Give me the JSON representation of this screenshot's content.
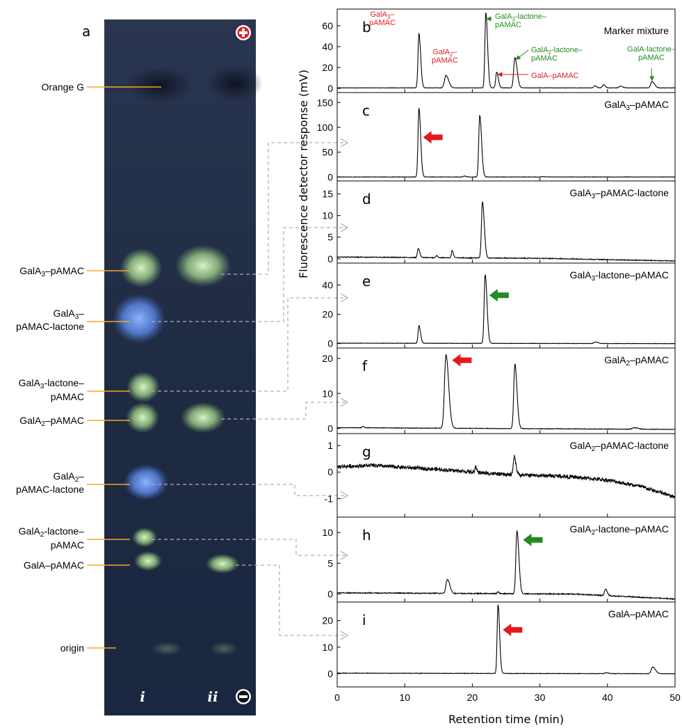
{
  "figure_letter": "a",
  "tlc": {
    "lane_labels": [
      "i",
      "ii"
    ],
    "band_labels": [
      {
        "text": "Orange G"
      },
      {
        "base": "GalA",
        "sub": "3",
        "rest": "–pAMAC"
      },
      {
        "base": "GalA",
        "sub": "3",
        "rest": "–",
        "line2": "pAMAC-lactone"
      },
      {
        "base": "GalA",
        "sub": "3",
        "rest": "-lactone–",
        "line2": "pAMAC"
      },
      {
        "base": "GalA",
        "sub": "2",
        "rest": "–pAMAC"
      },
      {
        "base": "GalA",
        "sub": "2",
        "rest": "–",
        "line2": "pAMAC-lactone"
      },
      {
        "base": "GalA",
        "sub": "2",
        "rest": "-lactone–",
        "line2": "pAMAC"
      },
      {
        "text": "GalA–pAMAC"
      },
      {
        "text": "origin"
      }
    ],
    "colors": {
      "plate": "#1e2a3f",
      "green_spot": "#c9f2a8",
      "blue_spot": "#6f9cff",
      "leader": "#f5a623",
      "dashed": "#b0b0b0"
    }
  },
  "chart_data": {
    "type": "line",
    "xlabel": "Retention time (min)",
    "ylabel": "Fluorescence detector response (mV)",
    "xlim": [
      0,
      50
    ],
    "xticks": [
      0,
      10,
      20,
      30,
      40,
      50
    ],
    "panels": [
      {
        "letter": "b",
        "title": "Marker mixture",
        "ylim": [
          -4,
          76
        ],
        "yticks": [
          0,
          20,
          40,
          60
        ],
        "baseline": [
          [
            0,
            0.5
          ],
          [
            50,
            0.5
          ]
        ],
        "peaks": [
          [
            12.1,
            52,
            0.14
          ],
          [
            16.1,
            12,
            0.22
          ],
          [
            22.0,
            72,
            0.14
          ],
          [
            23.6,
            15,
            0.14
          ],
          [
            26.3,
            29,
            0.18
          ],
          [
            38.1,
            2,
            0.15
          ],
          [
            39.4,
            3,
            0.15
          ],
          [
            41.9,
            1.5,
            0.2
          ],
          [
            46.6,
            6,
            0.2
          ]
        ],
        "annotations": [
          {
            "color": "red",
            "lines": [
              {
                "base": "GalA",
                "sub": "3",
                "rest": "–"
              },
              {
                "text": "pAMAC"
              }
            ]
          },
          {
            "color": "red",
            "lines": [
              {
                "base": "GalA",
                "sub": "2",
                "rest": "–"
              },
              {
                "text": "pAMAC"
              }
            ]
          },
          {
            "color": "green",
            "lines": [
              {
                "base": "GalA",
                "sub": "3",
                "rest": "-lactone–"
              },
              {
                "text": "pAMAC"
              }
            ]
          },
          {
            "color": "green",
            "lines": [
              {
                "base": "GalA",
                "sub": "2",
                "rest": "-lactone–"
              },
              {
                "text": "pAMAC"
              }
            ]
          },
          {
            "color": "red",
            "lines": [
              {
                "text": "GalA–pAMAC"
              }
            ]
          },
          {
            "color": "green",
            "lines": [
              {
                "text": "GalA-lactone–"
              },
              {
                "text": "pAMAC"
              }
            ]
          }
        ]
      },
      {
        "letter": "c",
        "title": {
          "base": "GalA",
          "sub": "3",
          "rest": "–pAMAC"
        },
        "ylim": [
          -8,
          170
        ],
        "yticks": [
          0,
          50,
          100,
          150
        ],
        "baseline": [
          [
            0,
            0
          ],
          [
            50,
            0
          ]
        ],
        "peaks": [
          [
            12.1,
            138,
            0.14
          ],
          [
            21.1,
            124,
            0.15
          ],
          [
            18.8,
            2,
            0.15
          ],
          [
            30.5,
            1,
            0.2
          ]
        ],
        "arrow": {
          "x": 12.1,
          "y": 80,
          "color": "red"
        }
      },
      {
        "letter": "d",
        "title": {
          "base": "GalA",
          "sub": "3",
          "rest": "–pAMAC-lactone"
        },
        "ylim": [
          -1,
          18
        ],
        "yticks": [
          0,
          5,
          10,
          15
        ],
        "baseline": [
          [
            0,
            0.4
          ],
          [
            30,
            0.1
          ],
          [
            50,
            -0.5
          ]
        ],
        "noise": 0.08,
        "peaks": [
          [
            12.0,
            2.1,
            0.12
          ],
          [
            14.7,
            0.5,
            0.1
          ],
          [
            17.0,
            1.7,
            0.1
          ],
          [
            21.5,
            13.0,
            0.15
          ]
        ]
      },
      {
        "letter": "e",
        "title": {
          "base": "GalA",
          "sub": "3",
          "rest": "-lactone–pAMAC"
        },
        "ylim": [
          -3,
          55
        ],
        "yticks": [
          0,
          20,
          40
        ],
        "baseline": [
          [
            0,
            0.3
          ],
          [
            50,
            0
          ]
        ],
        "peaks": [
          [
            12.1,
            12,
            0.13
          ],
          [
            21.9,
            47,
            0.15
          ],
          [
            38.2,
            1,
            0.2
          ]
        ],
        "arrow": {
          "x": 21.9,
          "y": 33,
          "color": "green"
        }
      },
      {
        "letter": "f",
        "title": {
          "base": "GalA",
          "sub": "2",
          "rest": "–pAMAC"
        },
        "ylim": [
          -1.5,
          23
        ],
        "yticks": [
          0,
          10,
          20
        ],
        "baseline": [
          [
            0,
            0.2
          ],
          [
            50,
            -0.3
          ]
        ],
        "noise": 0.05,
        "peaks": [
          [
            16.1,
            21,
            0.22
          ],
          [
            26.3,
            18.5,
            0.17
          ],
          [
            3.8,
            0.5,
            0.1
          ],
          [
            44.0,
            0.4,
            0.3
          ]
        ],
        "arrow": {
          "x": 16.4,
          "y": 19.5,
          "color": "red"
        }
      },
      {
        "letter": "g",
        "title": {
          "base": "GalA",
          "sub": "2",
          "rest": "–pAMAC-lactone"
        },
        "ylim": [
          -1.7,
          1.45
        ],
        "yticks": [
          1,
          0,
          -1
        ],
        "baseline": [
          [
            0,
            0.2
          ],
          [
            5,
            0.25
          ],
          [
            15,
            0.1
          ],
          [
            25,
            -0.1
          ],
          [
            33,
            -0.15
          ],
          [
            40,
            -0.3
          ],
          [
            45,
            -0.55
          ],
          [
            50,
            -0.95
          ]
        ],
        "noise": 0.07,
        "peaks": [
          [
            26.2,
            0.7,
            0.14
          ],
          [
            20.5,
            0.2,
            0.1
          ]
        ]
      },
      {
        "letter": "h",
        "title": {
          "base": "GalA",
          "sub": "2",
          "rest": "-lactone–pAMAC"
        },
        "ylim": [
          -1.3,
          12.5
        ],
        "yticks": [
          0,
          5,
          10
        ],
        "baseline": [
          [
            0,
            0.2
          ],
          [
            35,
            0
          ],
          [
            50,
            -0.8
          ]
        ],
        "noise": 0.07,
        "peaks": [
          [
            16.3,
            2.3,
            0.2
          ],
          [
            26.6,
            10.2,
            0.16
          ],
          [
            39.7,
            1.1,
            0.14
          ],
          [
            23.8,
            0.3,
            0.1
          ]
        ],
        "arrow": {
          "x": 26.9,
          "y": 8.8,
          "color": "green"
        }
      },
      {
        "letter": "i",
        "title": {
          "text": "GalA–pAMAC"
        },
        "ylim": [
          -5,
          27
        ],
        "yticks": [
          0,
          10,
          20
        ],
        "baseline": [
          [
            0,
            0.2
          ],
          [
            50,
            0
          ]
        ],
        "noise": 0.05,
        "peaks": [
          [
            23.8,
            26,
            0.13
          ],
          [
            46.7,
            2.5,
            0.22
          ],
          [
            39.8,
            0.3,
            0.2
          ]
        ],
        "arrow": {
          "x": 23.9,
          "y": 16.5,
          "color": "red"
        }
      }
    ]
  }
}
